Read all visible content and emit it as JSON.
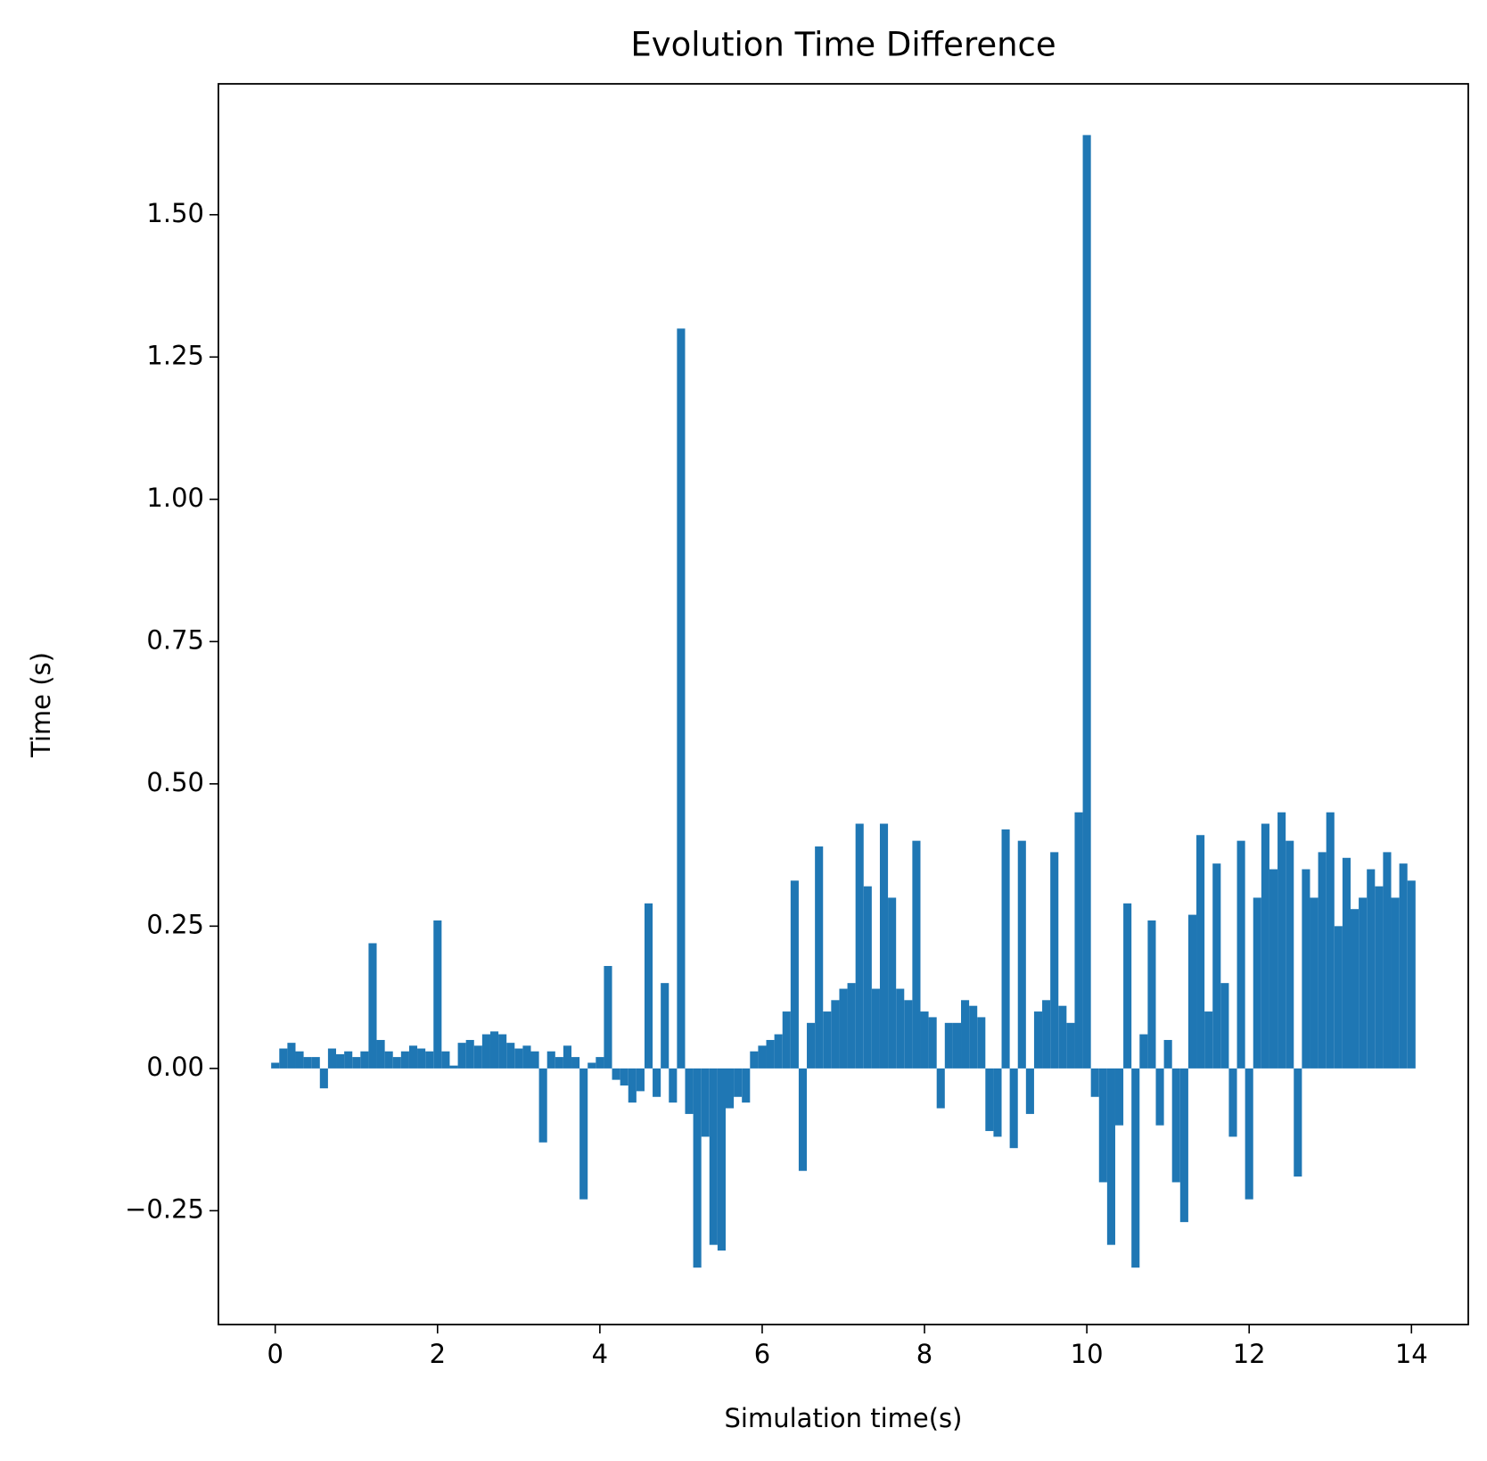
{
  "chart_data": {
    "type": "bar",
    "title": "Evolution Time Difference",
    "xlabel": "Simulation time(s)",
    "ylabel": "Time (s)",
    "color": "#1f77b4",
    "grid": false,
    "x": [
      0.0,
      0.1,
      0.2,
      0.3,
      0.4,
      0.5,
      0.6,
      0.7,
      0.8,
      0.9,
      1.0,
      1.1,
      1.2,
      1.3,
      1.4,
      1.5,
      1.6,
      1.7,
      1.8,
      1.9,
      2.0,
      2.1,
      2.2,
      2.3,
      2.4,
      2.5,
      2.6,
      2.7,
      2.8,
      2.9,
      3.0,
      3.1,
      3.2,
      3.3,
      3.4,
      3.5,
      3.6,
      3.7,
      3.8,
      3.9,
      4.0,
      4.1,
      4.2,
      4.3,
      4.4,
      4.5,
      4.6,
      4.7,
      4.8,
      4.9,
      5.0,
      5.1,
      5.2,
      5.3,
      5.4,
      5.5,
      5.6,
      5.7,
      5.8,
      5.9,
      6.0,
      6.1,
      6.2,
      6.3,
      6.4,
      6.5,
      6.6,
      6.7,
      6.8,
      6.9,
      7.0,
      7.1,
      7.2,
      7.3,
      7.4,
      7.5,
      7.6,
      7.7,
      7.8,
      7.9,
      8.0,
      8.1,
      8.2,
      8.3,
      8.4,
      8.5,
      8.6,
      8.7,
      8.8,
      8.9,
      9.0,
      9.1,
      9.2,
      9.3,
      9.4,
      9.5,
      9.6,
      9.7,
      9.8,
      9.9,
      10.0,
      10.1,
      10.2,
      10.3,
      10.4,
      10.5,
      10.6,
      10.7,
      10.8,
      10.9,
      11.0,
      11.1,
      11.2,
      11.3,
      11.4,
      11.5,
      11.6,
      11.7,
      11.8,
      11.9,
      12.0,
      12.1,
      12.2,
      12.3,
      12.4,
      12.5,
      12.6,
      12.7,
      12.8,
      12.9,
      13.0,
      13.1,
      13.2,
      13.3,
      13.4,
      13.5,
      13.6,
      13.7,
      13.8,
      13.9,
      14.0
    ],
    "values": [
      0.01,
      0.035,
      0.045,
      0.03,
      0.02,
      0.02,
      -0.035,
      0.035,
      0.025,
      0.03,
      0.02,
      0.03,
      0.22,
      0.05,
      0.03,
      0.02,
      0.03,
      0.04,
      0.035,
      0.03,
      0.26,
      0.03,
      0.005,
      0.045,
      0.05,
      0.04,
      0.06,
      0.065,
      0.06,
      0.045,
      0.035,
      0.04,
      0.03,
      -0.13,
      0.03,
      0.02,
      0.04,
      0.02,
      -0.23,
      0.01,
      0.02,
      0.18,
      -0.02,
      -0.03,
      -0.06,
      -0.04,
      0.29,
      -0.05,
      0.15,
      -0.06,
      1.3,
      -0.08,
      -0.35,
      -0.12,
      -0.31,
      -0.32,
      -0.07,
      -0.05,
      -0.06,
      0.03,
      0.04,
      0.05,
      0.06,
      0.1,
      0.33,
      -0.18,
      0.08,
      0.39,
      0.1,
      0.12,
      0.14,
      0.15,
      0.43,
      0.32,
      0.14,
      0.43,
      0.3,
      0.14,
      0.12,
      0.4,
      0.1,
      0.09,
      -0.07,
      0.08,
      0.08,
      0.12,
      0.11,
      0.09,
      -0.11,
      -0.12,
      0.42,
      -0.14,
      0.4,
      -0.08,
      0.1,
      0.12,
      0.38,
      0.11,
      0.08,
      0.45,
      1.64,
      -0.05,
      -0.2,
      -0.31,
      -0.1,
      0.29,
      -0.35,
      0.06,
      0.26,
      -0.1,
      0.05,
      -0.2,
      -0.27,
      0.27,
      0.41,
      0.1,
      0.36,
      0.15,
      -0.12,
      0.4,
      -0.23,
      0.3,
      0.43,
      0.35,
      0.45,
      0.4,
      -0.19,
      0.35,
      0.3,
      0.38,
      0.45,
      0.25,
      0.37,
      0.28,
      0.3,
      0.35,
      0.32,
      0.38,
      0.3,
      0.36,
      0.33
    ],
    "xlim": [
      -0.7,
      14.7
    ],
    "ylim": [
      -0.45,
      1.73
    ],
    "xticks": [
      0,
      2,
      4,
      6,
      8,
      10,
      12,
      14
    ],
    "yticks": [
      {
        "value": -0.25,
        "label": "−0.25"
      },
      {
        "value": 0,
        "label": "0.00"
      },
      0.25,
      {
        "value": 0.5,
        "label": "0.50"
      },
      0.75,
      {
        "value": 1,
        "label": "1.00"
      },
      1.25,
      {
        "value": 1.5,
        "label": "1.50"
      }
    ]
  }
}
